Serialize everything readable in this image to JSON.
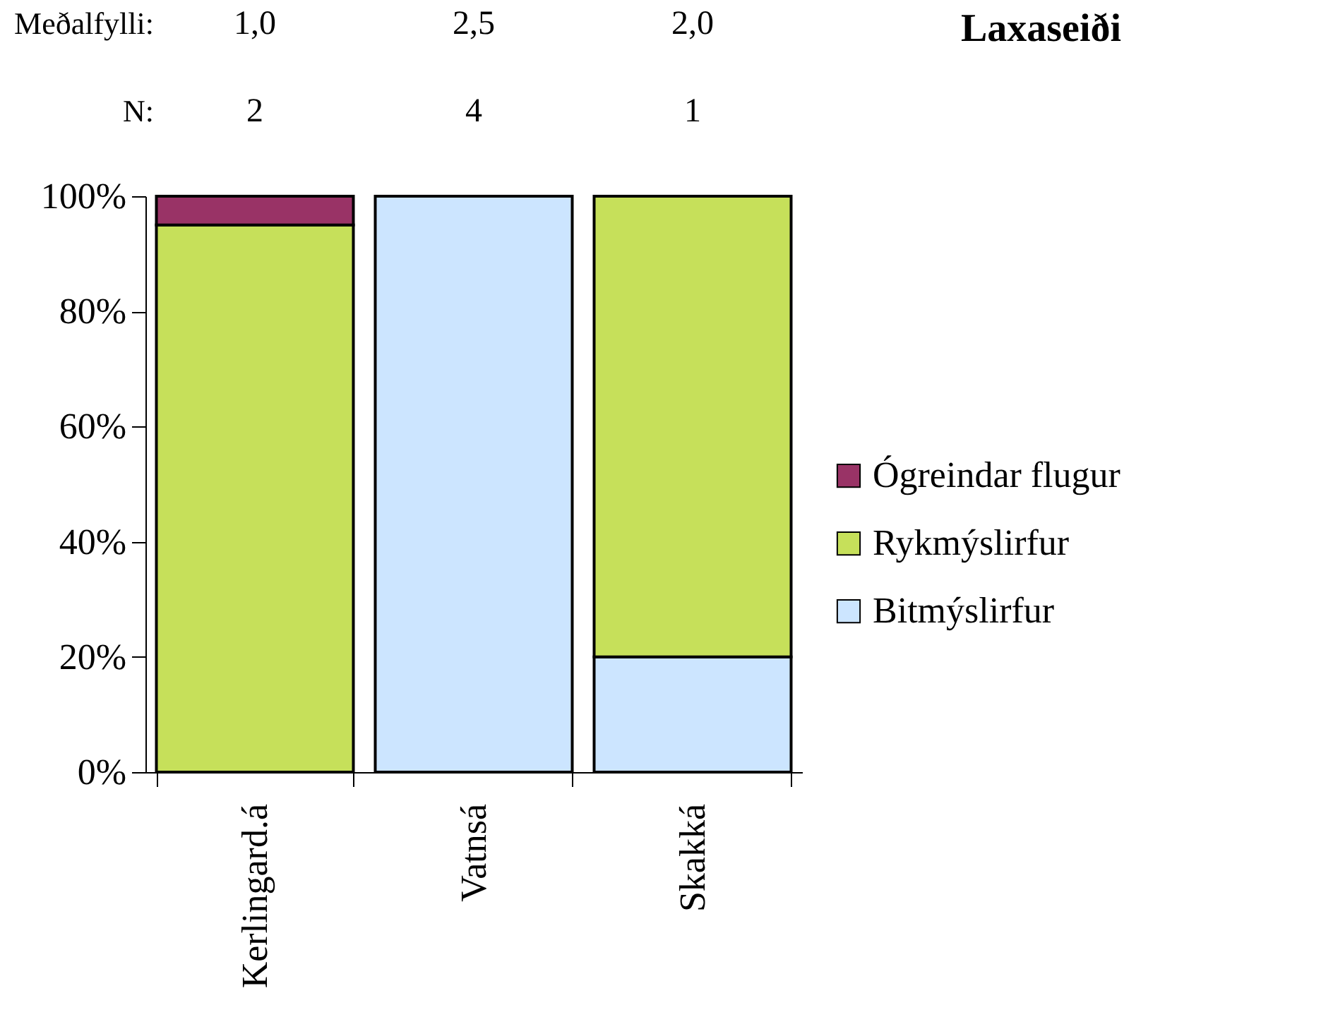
{
  "chart_data": {
    "type": "bar",
    "title": "Laxaseiði",
    "stacked": true,
    "categories": [
      "Kerlingard.á",
      "Vatnsá",
      "Skakká"
    ],
    "series": [
      {
        "name": "Bitmýslirfur",
        "color": "#cce5ff",
        "values": [
          null,
          100,
          20
        ]
      },
      {
        "name": "Rykmýslirfur",
        "color": "#c6e05a",
        "values": [
          95,
          null,
          80
        ]
      },
      {
        "name": "Ógreindar flugur",
        "color": "#993366",
        "values": [
          5,
          null,
          null
        ]
      }
    ],
    "ylim": [
      0,
      100
    ],
    "yticks": [
      {
        "value": 0,
        "label": "0%"
      },
      {
        "value": 20,
        "label": "20%"
      },
      {
        "value": 40,
        "label": "40%"
      },
      {
        "value": 60,
        "label": "60%"
      },
      {
        "value": 80,
        "label": "80%"
      },
      {
        "value": 100,
        "label": "100%"
      }
    ],
    "grid": false,
    "legend": "right",
    "annotations": [
      "Meðalfylli:",
      "1,0",
      "2,5",
      "2,0",
      "N:",
      "2",
      "4",
      "1"
    ]
  }
}
